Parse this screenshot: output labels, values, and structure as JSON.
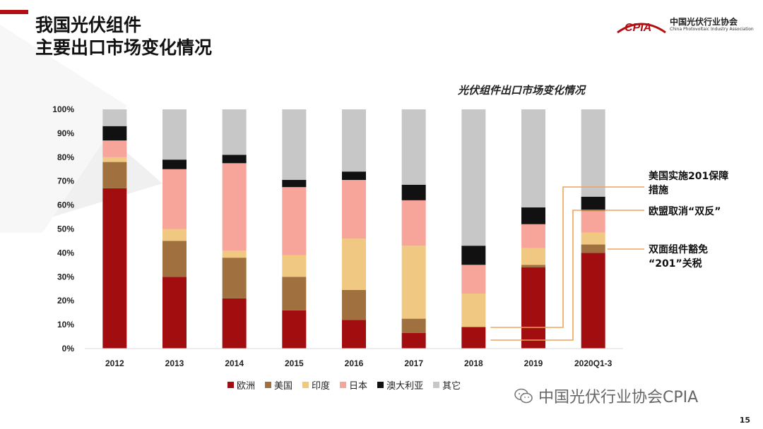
{
  "slide": {
    "title_line1": "我国光伏组件",
    "title_line2": "主要出口市场变化情况",
    "logo_mark": "CPIA",
    "logo_cn": "中国光伏行业协会",
    "logo_en": "China Photovoltaic Industry Association",
    "page_number": "15",
    "watermark": "中国光伏行业协会CPIA",
    "accent_color": "#b30f12"
  },
  "annotations": [
    {
      "text_line1": "美国实施201保障",
      "text_line2": "措施"
    },
    {
      "text_line1": "欧盟取消“双反”",
      "text_line2": ""
    },
    {
      "text_line1": "双面组件豁免",
      "text_line2": "“201”关税"
    }
  ],
  "chart_data": {
    "type": "bar",
    "stacked": true,
    "title": "光伏组件出口市场变化情况",
    "categories": [
      "2012",
      "2013",
      "2014",
      "2015",
      "2016",
      "2017",
      "2018",
      "2019",
      "2020Q1-3"
    ],
    "ylim": [
      0,
      100
    ],
    "yticks": [
      "0%",
      "10%",
      "20%",
      "30%",
      "40%",
      "50%",
      "60%",
      "70%",
      "80%",
      "90%",
      "100%"
    ],
    "legend_position": "bottom",
    "grid": false,
    "series": [
      {
        "name": "欧洲",
        "color": "#a20d10",
        "values": [
          67,
          30,
          21,
          16,
          12,
          6.5,
          9,
          34,
          40
        ]
      },
      {
        "name": "美国",
        "color": "#a0713f",
        "values": [
          11,
          15,
          17,
          14,
          12.5,
          6,
          0,
          1,
          3.5
        ]
      },
      {
        "name": "印度",
        "color": "#f0c881",
        "values": [
          2,
          5,
          3,
          9,
          21.5,
          30.5,
          14,
          7,
          5
        ]
      },
      {
        "name": "日本",
        "color": "#f7a49b",
        "values": [
          7,
          25,
          36.5,
          28.5,
          24.5,
          19,
          12,
          10,
          9
        ]
      },
      {
        "name": "澳大利亚",
        "color": "#111111",
        "values": [
          6,
          4,
          3.5,
          3,
          3.5,
          6.5,
          8,
          7,
          6
        ]
      },
      {
        "name": "其它",
        "color": "#c7c7c7",
        "values": [
          7,
          21,
          19,
          29.5,
          26,
          31.5,
          57,
          41,
          36.5
        ]
      }
    ]
  }
}
